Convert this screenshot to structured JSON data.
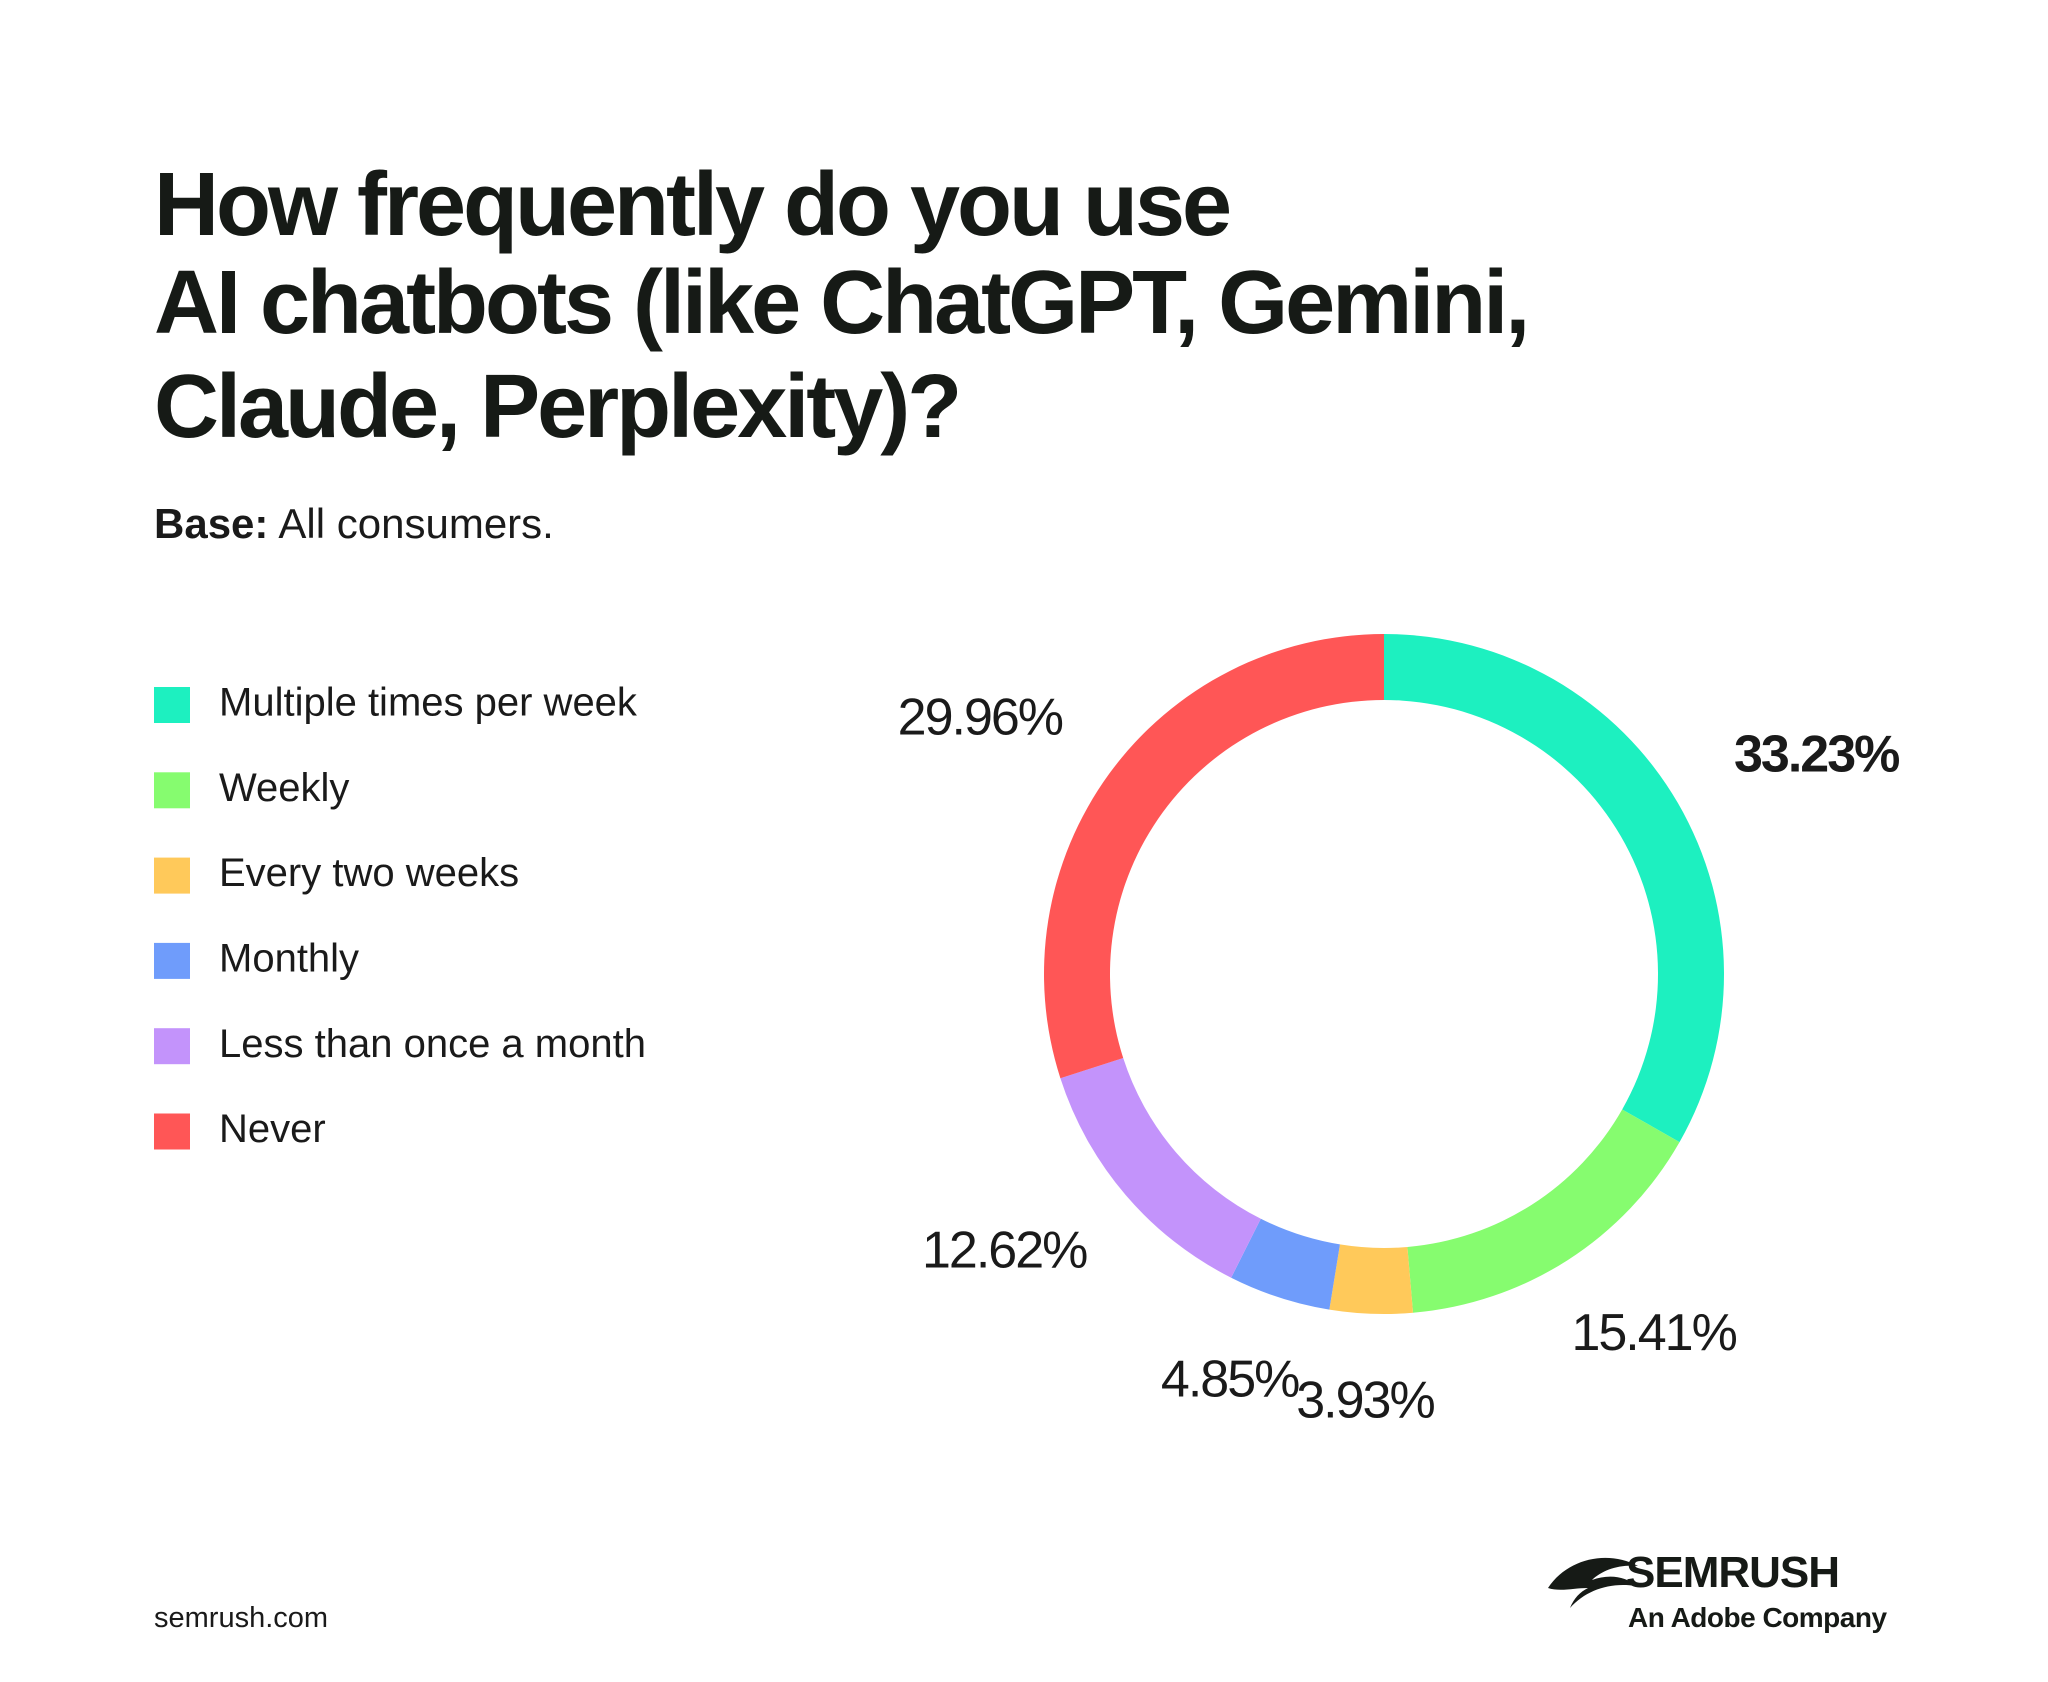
{
  "chart_data": {
    "type": "donut",
    "title": [
      "How frequently do you use",
      "AI chatbots (like ChatGPT, Gemini,",
      "Claude, Perplexity)?"
    ],
    "base_label": "Base:",
    "subtitle": "All consumers.",
    "series": [
      {
        "name": "Multiple times per week",
        "color": "#1df0c0"
      },
      {
        "name": "Weekly",
        "color": "#86fc6f"
      },
      {
        "name": "Every two weeks",
        "color": "#ffc95a"
      },
      {
        "name": "Monthly",
        "color": "#6f9cfb"
      },
      {
        "name": "Less than once a month",
        "color": "#c393fb"
      },
      {
        "name": "Never",
        "color": "#ff5656"
      }
    ],
    "values": [
      33.23,
      15.41,
      3.93,
      4.85,
      12.62,
      29.96
    ],
    "value_labels": [
      "33.23%",
      "15.41%",
      "3.93%",
      "4.85%",
      "12.62%",
      "29.96%"
    ]
  },
  "footer": {
    "site": "semrush.com",
    "brand": "SEMRUSH",
    "brand_sub": "An Adobe Company"
  }
}
